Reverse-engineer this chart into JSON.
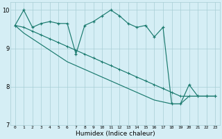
{
  "xlabel": "Humidex (Indice chaleur)",
  "bg_color": "#d5eef5",
  "line_color": "#1a7a6e",
  "grid_color": "#a8cdd5",
  "xlim": [
    -0.5,
    23.5
  ],
  "ylim": [
    7,
    10.2
  ],
  "yticks": [
    7,
    8,
    9,
    10
  ],
  "xticks": [
    0,
    1,
    2,
    3,
    4,
    5,
    6,
    7,
    8,
    9,
    10,
    11,
    12,
    13,
    14,
    15,
    16,
    17,
    18,
    19,
    20,
    21,
    22,
    23
  ],
  "hours": [
    0,
    1,
    2,
    3,
    4,
    5,
    6,
    7,
    8,
    9,
    10,
    11,
    12,
    13,
    14,
    15,
    16,
    17,
    18,
    19,
    20,
    21,
    22,
    23
  ],
  "line_jagged": [
    9.6,
    10.0,
    9.55,
    9.65,
    9.7,
    9.65,
    9.65,
    8.85,
    9.6,
    9.7,
    9.85,
    10.0,
    9.85,
    9.65,
    9.55,
    9.6,
    9.3,
    9.55,
    7.55,
    7.55,
    8.05,
    7.75,
    7.75,
    7.75
  ],
  "line_upper": [
    9.6,
    9.55,
    9.45,
    9.35,
    9.25,
    9.15,
    9.05,
    8.95,
    8.85,
    8.75,
    8.65,
    8.55,
    8.45,
    8.35,
    8.25,
    8.15,
    8.05,
    7.95,
    7.85,
    7.75,
    7.75,
    7.75,
    7.75,
    7.75
  ],
  "line_lower": [
    9.6,
    9.4,
    9.25,
    9.1,
    8.95,
    8.8,
    8.65,
    8.55,
    8.45,
    8.35,
    8.25,
    8.15,
    8.05,
    7.95,
    7.85,
    7.75,
    7.65,
    7.6,
    7.55,
    7.55,
    7.75,
    7.75,
    7.75,
    7.75
  ]
}
